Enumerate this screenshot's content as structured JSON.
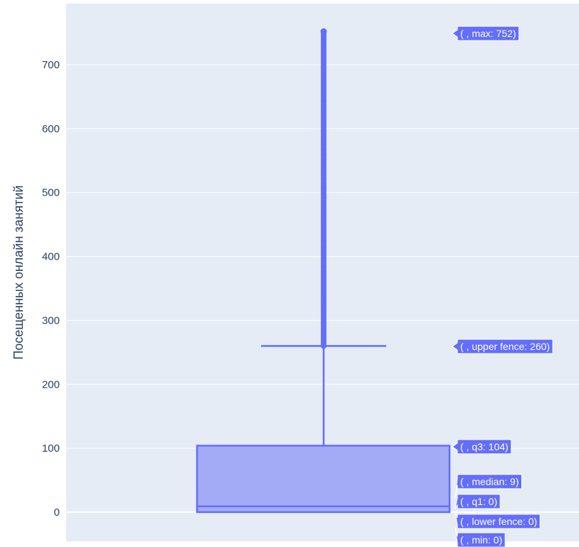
{
  "chart_data": {
    "type": "box",
    "title": "",
    "xlabel": "",
    "ylabel": "Посещенных онлайн занятий",
    "ylim": [
      -40,
      800
    ],
    "yticks": [
      0,
      100,
      200,
      300,
      400,
      500,
      600,
      700
    ],
    "grid": true,
    "series": [
      {
        "stats": {
          "min": 0,
          "lower_fence": 0,
          "q1": 0,
          "median": 9,
          "q3": 104,
          "upper_fence": 260,
          "max": 752
        },
        "outliers": {
          "from": 260,
          "to": 752
        }
      }
    ],
    "hover_labels": [
      {
        "key": "max",
        "text": "( , max: 752)"
      },
      {
        "key": "upper_fence",
        "text": "( , upper fence: 260)"
      },
      {
        "key": "q3",
        "text": "( , q3: 104)"
      },
      {
        "key": "median",
        "text": "( , median: 9)"
      },
      {
        "key": "q1",
        "text": "( , q1: 0)"
      },
      {
        "key": "lower_fence",
        "text": "( , lower fence: 0)"
      },
      {
        "key": "min",
        "text": "( , min: 0)"
      }
    ],
    "colors": {
      "plot_bg": "#e5ecf6",
      "grid": "#ffffff",
      "box_line": "#636efa",
      "box_fill": "#a3abf7",
      "label_bg": "#636efa",
      "label_text": "#ffffff",
      "axis_text": "#2a3f5f"
    }
  }
}
